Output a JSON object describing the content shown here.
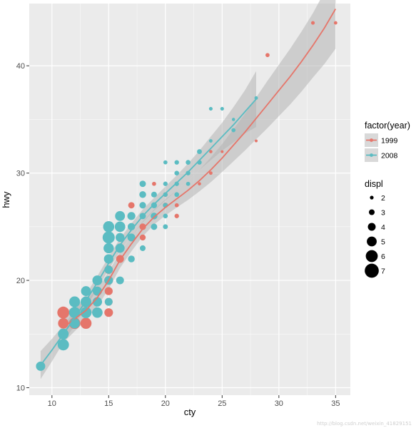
{
  "chart_data": {
    "type": "scatter",
    "title": "",
    "xlabel": "cty",
    "ylabel": "hwy",
    "xlim": [
      8,
      36.3
    ],
    "ylim": [
      9.3,
      45.8
    ],
    "x_ticks": [
      10,
      15,
      20,
      25,
      30,
      35
    ],
    "y_ticks": [
      10,
      20,
      30,
      40
    ],
    "grid": true,
    "legend_placement": "right",
    "colors": {
      "panel": "#ebebeb",
      "grid": "#ffffff",
      "1999": "#e5766b",
      "2008": "#5bbcc2",
      "ribbon": "#b4b4b4",
      "size_key": "#000000"
    },
    "color_legend": {
      "title": "factor(year)",
      "entries": [
        "1999",
        "2008"
      ]
    },
    "size_legend": {
      "title": "displ",
      "values": [
        2,
        3,
        4,
        5,
        6,
        7
      ]
    },
    "series": [
      {
        "name": "1999",
        "points": [
          [
            11,
            17,
            6.0
          ],
          [
            11,
            16,
            5.3
          ],
          [
            11,
            15,
            5.0
          ],
          [
            12,
            17,
            5.2
          ],
          [
            12,
            16,
            5.7
          ],
          [
            13,
            17,
            5.3
          ],
          [
            13,
            16,
            5.6
          ],
          [
            14,
            17,
            4.7
          ],
          [
            14,
            19,
            4.6
          ],
          [
            14,
            18,
            4.0
          ],
          [
            15,
            17,
            4.4
          ],
          [
            15,
            18,
            4.0
          ],
          [
            15,
            19,
            4.1
          ],
          [
            15,
            20,
            4.4
          ],
          [
            15,
            21,
            4.3
          ],
          [
            16,
            22,
            4.0
          ],
          [
            16,
            24,
            3.8
          ],
          [
            16,
            26,
            3.8
          ],
          [
            16,
            25,
            4.0
          ],
          [
            17,
            24,
            3.8
          ],
          [
            17,
            27,
            3.3
          ],
          [
            18,
            24,
            3.1
          ],
          [
            18,
            25,
            3.4
          ],
          [
            18,
            26,
            3.0
          ],
          [
            18,
            27,
            2.8
          ],
          [
            18,
            29,
            2.0
          ],
          [
            19,
            26,
            2.6
          ],
          [
            19,
            27,
            2.5
          ],
          [
            19,
            29,
            2.2
          ],
          [
            20,
            27,
            2.7
          ],
          [
            20,
            28,
            2.4
          ],
          [
            21,
            26,
            2.4
          ],
          [
            21,
            27,
            2.2
          ],
          [
            21,
            28,
            2.0
          ],
          [
            22,
            29,
            2.0
          ],
          [
            23,
            29,
            1.8
          ],
          [
            24,
            30,
            1.9
          ],
          [
            24,
            32,
            1.8
          ],
          [
            25,
            32,
            1.6
          ],
          [
            28,
            33,
            1.6
          ],
          [
            29,
            41,
            2.2
          ],
          [
            33,
            44,
            2.0
          ],
          [
            35,
            44,
            1.9
          ]
        ],
        "smooth": [
          [
            11,
            15.6
          ],
          [
            12,
            16.4
          ],
          [
            13,
            17.2
          ],
          [
            14,
            18.4
          ],
          [
            15,
            20.0
          ],
          [
            16,
            21.9
          ],
          [
            17,
            23.4
          ],
          [
            18,
            24.8
          ],
          [
            19,
            25.9
          ],
          [
            20,
            26.8
          ],
          [
            21,
            27.6
          ],
          [
            22,
            28.4
          ],
          [
            23,
            29.3
          ],
          [
            24,
            30.3
          ],
          [
            25,
            31.4
          ],
          [
            26,
            32.6
          ],
          [
            27,
            33.8
          ],
          [
            28,
            35.1
          ],
          [
            29,
            36.4
          ],
          [
            30,
            37.7
          ],
          [
            31,
            39.0
          ],
          [
            32,
            40.4
          ],
          [
            33,
            41.9
          ],
          [
            34,
            43.5
          ],
          [
            35,
            45.3
          ]
        ],
        "band": [
          [
            11,
            1.4
          ],
          [
            13,
            0.9
          ],
          [
            15,
            0.8
          ],
          [
            17,
            0.7
          ],
          [
            19,
            0.7
          ],
          [
            21,
            0.8
          ],
          [
            23,
            1.0
          ],
          [
            25,
            1.3
          ],
          [
            27,
            1.7
          ],
          [
            29,
            2.2
          ],
          [
            31,
            2.6
          ],
          [
            33,
            3.0
          ],
          [
            35,
            3.7
          ]
        ]
      },
      {
        "name": "2008",
        "points": [
          [
            9,
            12,
            4.7
          ],
          [
            11,
            14,
            5.7
          ],
          [
            11,
            15,
            5.4
          ],
          [
            12,
            16,
            5.2
          ],
          [
            12,
            17,
            5.7
          ],
          [
            12,
            18,
            5.5
          ],
          [
            13,
            17,
            5.6
          ],
          [
            13,
            18,
            5.4
          ],
          [
            13,
            19,
            5.0
          ],
          [
            14,
            17,
            5.3
          ],
          [
            14,
            18,
            4.8
          ],
          [
            14,
            19,
            4.6
          ],
          [
            14,
            20,
            5.0
          ],
          [
            15,
            18,
            4.0
          ],
          [
            15,
            20,
            4.4
          ],
          [
            15,
            21,
            4.2
          ],
          [
            15,
            22,
            4.8
          ],
          [
            15,
            23,
            5.2
          ],
          [
            15,
            24,
            6.1
          ],
          [
            15,
            25,
            5.6
          ],
          [
            16,
            20,
            4.0
          ],
          [
            16,
            23,
            4.7
          ],
          [
            16,
            24,
            4.5
          ],
          [
            16,
            25,
            5.3
          ],
          [
            16,
            26,
            5.0
          ],
          [
            17,
            22,
            3.5
          ],
          [
            17,
            24,
            4.0
          ],
          [
            17,
            25,
            3.8
          ],
          [
            17,
            26,
            4.1
          ],
          [
            18,
            23,
            3.0
          ],
          [
            18,
            26,
            3.3
          ],
          [
            18,
            27,
            3.4
          ],
          [
            18,
            28,
            3.5
          ],
          [
            18,
            29,
            3.3
          ],
          [
            19,
            25,
            3.3
          ],
          [
            19,
            26,
            3.5
          ],
          [
            19,
            27,
            3.1
          ],
          [
            19,
            28,
            3.0
          ],
          [
            20,
            25,
            2.6
          ],
          [
            20,
            26,
            2.5
          ],
          [
            20,
            27,
            2.6
          ],
          [
            20,
            28,
            2.4
          ],
          [
            20,
            29,
            2.4
          ],
          [
            20,
            31,
            2.2
          ],
          [
            21,
            28,
            2.5
          ],
          [
            21,
            29,
            2.4
          ],
          [
            21,
            30,
            2.5
          ],
          [
            21,
            31,
            2.4
          ],
          [
            22,
            29,
            2.2
          ],
          [
            22,
            30,
            2.4
          ],
          [
            22,
            31,
            2.5
          ],
          [
            23,
            31,
            2.4
          ],
          [
            23,
            32,
            2.6
          ],
          [
            24,
            33,
            1.9
          ],
          [
            24,
            36,
            2.0
          ],
          [
            25,
            36,
            2.0
          ],
          [
            26,
            34,
            2.2
          ],
          [
            26,
            35,
            1.8
          ],
          [
            28,
            37,
            1.9
          ]
        ],
        "smooth": [
          [
            9,
            12.1
          ],
          [
            10,
            13.5
          ],
          [
            11,
            15.0
          ],
          [
            12,
            16.5
          ],
          [
            13,
            18.1
          ],
          [
            14,
            19.8
          ],
          [
            15,
            21.6
          ],
          [
            16,
            23.3
          ],
          [
            17,
            24.7
          ],
          [
            18,
            26.0
          ],
          [
            19,
            27.1
          ],
          [
            20,
            28.1
          ],
          [
            21,
            29.1
          ],
          [
            22,
            30.1
          ],
          [
            23,
            31.2
          ],
          [
            24,
            32.3
          ],
          [
            25,
            33.4
          ],
          [
            26,
            34.5
          ],
          [
            27,
            35.7
          ],
          [
            28,
            36.9
          ]
        ],
        "band": [
          [
            9,
            1.3
          ],
          [
            11,
            0.8
          ],
          [
            13,
            0.6
          ],
          [
            15,
            0.6
          ],
          [
            17,
            0.6
          ],
          [
            19,
            0.6
          ],
          [
            21,
            0.7
          ],
          [
            23,
            0.9
          ],
          [
            25,
            1.3
          ],
          [
            27,
            2.0
          ],
          [
            28,
            2.6
          ]
        ]
      }
    ]
  },
  "watermark": "http://blog.csdn.net/weixin_41829151"
}
